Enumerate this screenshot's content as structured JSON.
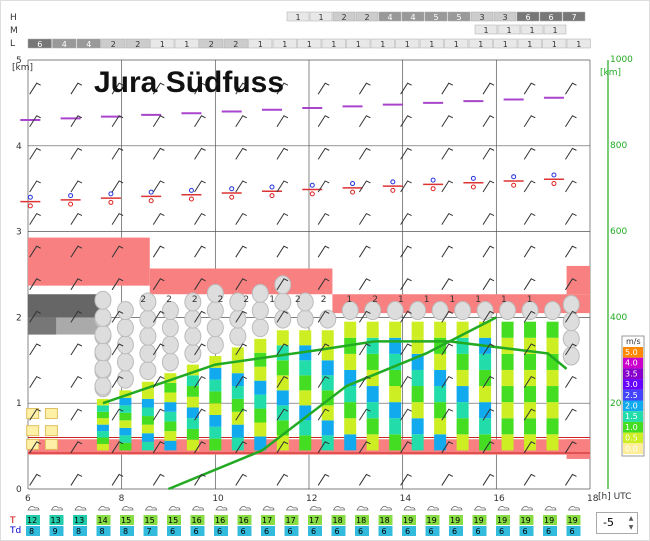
{
  "title": "Jura Südfuss",
  "level_labels": {
    "H": "H",
    "M": "M",
    "L": "L"
  },
  "axis": {
    "left_unit": "[km]",
    "right_unit": "[km]",
    "x_unit": "[h] UTC",
    "x_ticks": [
      "6",
      "8",
      "10",
      "12",
      "14",
      "16",
      "18"
    ],
    "y_left_ticks": [
      "0",
      "1",
      "2",
      "3",
      "4",
      "5"
    ],
    "y_right_ticks": [
      "200",
      "400",
      "600",
      "800",
      "1000"
    ]
  },
  "legend": {
    "title": "m/s",
    "entries": [
      "5.0",
      "4.0",
      "3.5",
      "3.0",
      "2.5",
      "2.0",
      "1.5",
      "1.0",
      "0.5",
      "0.0"
    ],
    "colors": [
      "#ff8800",
      "#cc00cc",
      "#8800cc",
      "#6600ff",
      "#4444ff",
      "#11aaee",
      "#22ddaa",
      "#44dd22",
      "#ccee22",
      "#ffee99"
    ]
  },
  "row_labels": {
    "T": "T",
    "Td": "Td"
  },
  "spinner_value": "-5",
  "cloud_rows": {
    "H": [
      "1",
      "1",
      "2",
      "2",
      "4",
      "4",
      "5",
      "5",
      "3",
      "3",
      "6",
      "6",
      "7"
    ],
    "M": [
      "1",
      "1",
      "1",
      "1"
    ],
    "L": [
      "6",
      "4",
      "4",
      "2",
      "2",
      "1",
      "1",
      "2",
      "2",
      "1",
      "1",
      "1",
      "1",
      "1",
      "1",
      "1",
      "1",
      "1",
      "1",
      "1",
      "1",
      "1",
      "1"
    ]
  },
  "chart_data": {
    "type": "heatmap",
    "title": "Jura Südfuss",
    "xlabel": "[h] UTC",
    "ylabel": "[km]",
    "xlim": [
      6,
      18
    ],
    "ylim": [
      0,
      5
    ],
    "temperature_T": [
      "12",
      "13",
      "13",
      "14",
      "15",
      "15",
      "15",
      "16",
      "16",
      "16",
      "17",
      "17",
      "17",
      "18",
      "18",
      "18",
      "19",
      "19",
      "19",
      "19",
      "19",
      "19",
      "19",
      "19"
    ],
    "dewpoint_Td": [
      "8",
      "9",
      "8",
      "8",
      "8",
      "7",
      "6",
      "6",
      "6",
      "6",
      "6",
      "6",
      "6",
      "6",
      "6",
      "6",
      "6",
      "6",
      "6",
      "6",
      "6",
      "6",
      "6",
      "6"
    ],
    "cloud_cover_labels": [
      "2",
      "2",
      "2",
      "2",
      "2",
      "1",
      "2",
      "2",
      "1",
      "2",
      "1",
      "1",
      "1",
      "1",
      "1",
      "1"
    ]
  }
}
